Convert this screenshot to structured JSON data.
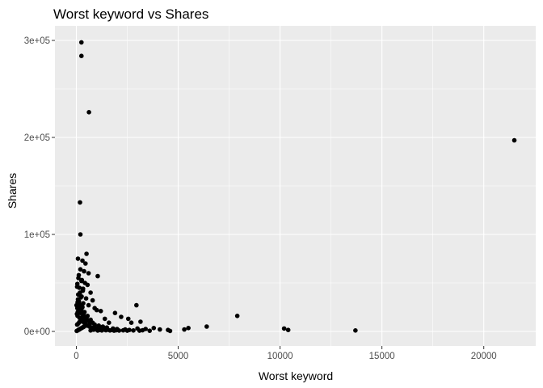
{
  "chart_data": {
    "type": "scatter",
    "title": "Worst keyword vs Shares",
    "xlabel": "Worst keyword",
    "ylabel": "Shares",
    "xlim": [
      -1050,
      22550
    ],
    "ylim": [
      -15000,
      315000
    ],
    "x_ticks": [
      0,
      5000,
      10000,
      15000,
      20000
    ],
    "x_tick_labels": [
      "0",
      "5000",
      "10000",
      "15000",
      "20000"
    ],
    "y_ticks": [
      0,
      100000,
      200000,
      300000
    ],
    "y_tick_labels": [
      "0e+00",
      "1e+05",
      "2e+05",
      "3e+05"
    ],
    "grid": true,
    "background": "#ebebeb",
    "grid_color": "#ffffff",
    "point_color": "#000000",
    "points": [
      [
        250,
        298000
      ],
      [
        250,
        284000
      ],
      [
        620,
        226000
      ],
      [
        21500,
        197000
      ],
      [
        180,
        133000
      ],
      [
        200,
        100000
      ],
      [
        500,
        80000
      ],
      [
        80,
        75000
      ],
      [
        300,
        73000
      ],
      [
        450,
        70000
      ],
      [
        1050,
        57000
      ],
      [
        600,
        60000
      ],
      [
        200,
        64000
      ],
      [
        380,
        62000
      ],
      [
        100,
        55000
      ],
      [
        250,
        52000
      ],
      [
        420,
        50000
      ],
      [
        50,
        49000
      ],
      [
        550,
        48000
      ],
      [
        150,
        45000
      ],
      [
        320,
        42000
      ],
      [
        700,
        40000
      ],
      [
        90,
        38000
      ],
      [
        260,
        36000
      ],
      [
        480,
        34000
      ],
      [
        800,
        32000
      ],
      [
        60,
        30000
      ],
      [
        340,
        29000
      ],
      [
        2950,
        27000
      ],
      [
        600,
        27000
      ],
      [
        150,
        26000
      ],
      [
        900,
        24000
      ],
      [
        1000,
        22000
      ],
      [
        1200,
        21000
      ],
      [
        400,
        20000
      ],
      [
        1900,
        19000
      ],
      [
        7900,
        16000
      ],
      [
        2200,
        15000
      ],
      [
        2550,
        13000
      ],
      [
        1400,
        13000
      ],
      [
        700,
        12000
      ],
      [
        3150,
        10000
      ],
      [
        2700,
        9000
      ],
      [
        1600,
        9000
      ],
      [
        6400,
        5000
      ],
      [
        5500,
        3500
      ],
      [
        5300,
        2000
      ],
      [
        4100,
        2000
      ],
      [
        3800,
        3500
      ],
      [
        4500,
        1500
      ],
      [
        3400,
        2500
      ],
      [
        10200,
        3000
      ],
      [
        10400,
        1500
      ],
      [
        13700,
        1000
      ],
      [
        4600,
        500
      ],
      [
        3600,
        700
      ],
      [
        3000,
        3000
      ],
      [
        2400,
        2000
      ],
      [
        2000,
        2500
      ],
      [
        1800,
        3000
      ],
      [
        1500,
        4000
      ],
      [
        1300,
        5000
      ],
      [
        1100,
        6000
      ],
      [
        900,
        7000
      ],
      [
        800,
        9000
      ],
      [
        600,
        11000
      ],
      [
        500,
        14000
      ],
      [
        350,
        17000
      ],
      [
        200,
        19000
      ],
      [
        120,
        22000
      ],
      [
        50,
        24000
      ],
      [
        300,
        25000
      ],
      [
        150,
        28000
      ],
      [
        80,
        33000
      ],
      [
        220,
        35000
      ],
      [
        180,
        40000
      ],
      [
        330,
        44000
      ],
      [
        40,
        46000
      ],
      [
        270,
        53000
      ],
      [
        120,
        58000
      ],
      [
        60,
        16000
      ],
      [
        160,
        14000
      ],
      [
        240,
        12000
      ],
      [
        320,
        10000
      ],
      [
        420,
        8000
      ],
      [
        520,
        6000
      ],
      [
        640,
        5000
      ],
      [
        760,
        4000
      ],
      [
        880,
        3000
      ],
      [
        1000,
        2000
      ],
      [
        1150,
        1500
      ],
      [
        1250,
        1000
      ],
      [
        1350,
        2000
      ],
      [
        1450,
        1200
      ],
      [
        1550,
        1800
      ],
      [
        1650,
        1000
      ],
      [
        1750,
        1500
      ],
      [
        1850,
        800
      ],
      [
        1950,
        1200
      ],
      [
        2100,
        900
      ],
      [
        2300,
        1100
      ],
      [
        2500,
        800
      ],
      [
        2600,
        1500
      ],
      [
        2800,
        1000
      ],
      [
        3100,
        800
      ],
      [
        3250,
        1200
      ],
      [
        20,
        500
      ],
      [
        60,
        1000
      ],
      [
        100,
        1500
      ],
      [
        140,
        2000
      ],
      [
        180,
        2500
      ],
      [
        220,
        3000
      ],
      [
        260,
        3500
      ],
      [
        300,
        4000
      ],
      [
        340,
        4500
      ],
      [
        380,
        5000
      ],
      [
        40,
        7000
      ],
      [
        90,
        8000
      ],
      [
        130,
        9000
      ],
      [
        170,
        10000
      ],
      [
        210,
        11000
      ],
      [
        250,
        13000
      ],
      [
        290,
        15000
      ],
      [
        30,
        18000
      ],
      [
        70,
        20000
      ],
      [
        110,
        21000
      ],
      [
        10,
        27000
      ],
      [
        130,
        31000
      ],
      [
        700,
        1000
      ],
      [
        750,
        2500
      ],
      [
        850,
        1800
      ],
      [
        950,
        3500
      ],
      [
        1050,
        900
      ],
      [
        1150,
        2800
      ],
      [
        1250,
        3800
      ],
      [
        1400,
        2500
      ],
      [
        650,
        7500
      ],
      [
        450,
        9500
      ],
      [
        400,
        12500
      ],
      [
        550,
        16000
      ],
      [
        350,
        19500
      ],
      [
        250,
        23000
      ],
      [
        200,
        27000
      ],
      [
        100,
        30000
      ]
    ]
  }
}
